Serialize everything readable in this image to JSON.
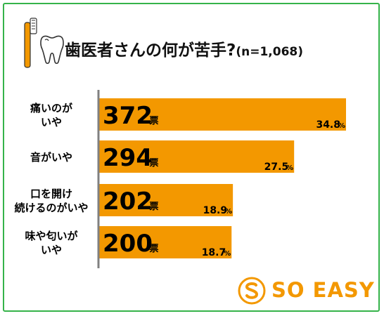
{
  "title": "歯医者さんの何が苦手?",
  "title_n": "(n=1,068)",
  "logo": {
    "text": "SO EASY"
  },
  "icons": [
    "toothbrush-icon",
    "tooth-icon",
    "so-easy-logo-icon"
  ],
  "colors": {
    "bar": "#f39800",
    "frame": "#35b34a",
    "axis": "#808080",
    "logo": "#f39800"
  },
  "chart_data": {
    "type": "bar",
    "orientation": "horizontal",
    "title": "歯医者さんの何が苦手?",
    "subtitle": "(n=1,068)",
    "unit": "票",
    "categories": [
      [
        "痛いのが",
        "いや"
      ],
      [
        "音がいや"
      ],
      [
        "口を開け",
        "続けるのがいや"
      ],
      [
        "味や匂いが",
        "いや"
      ]
    ],
    "values": [
      372,
      294,
      202,
      200
    ],
    "value_labels": [
      "372",
      "294",
      "202",
      "200"
    ],
    "percent_labels": [
      "34.8",
      "27.5",
      "18.9",
      "18.7"
    ],
    "percent_unit": "%",
    "xlim": [
      0,
      372
    ],
    "grid": false,
    "legend": "none"
  }
}
